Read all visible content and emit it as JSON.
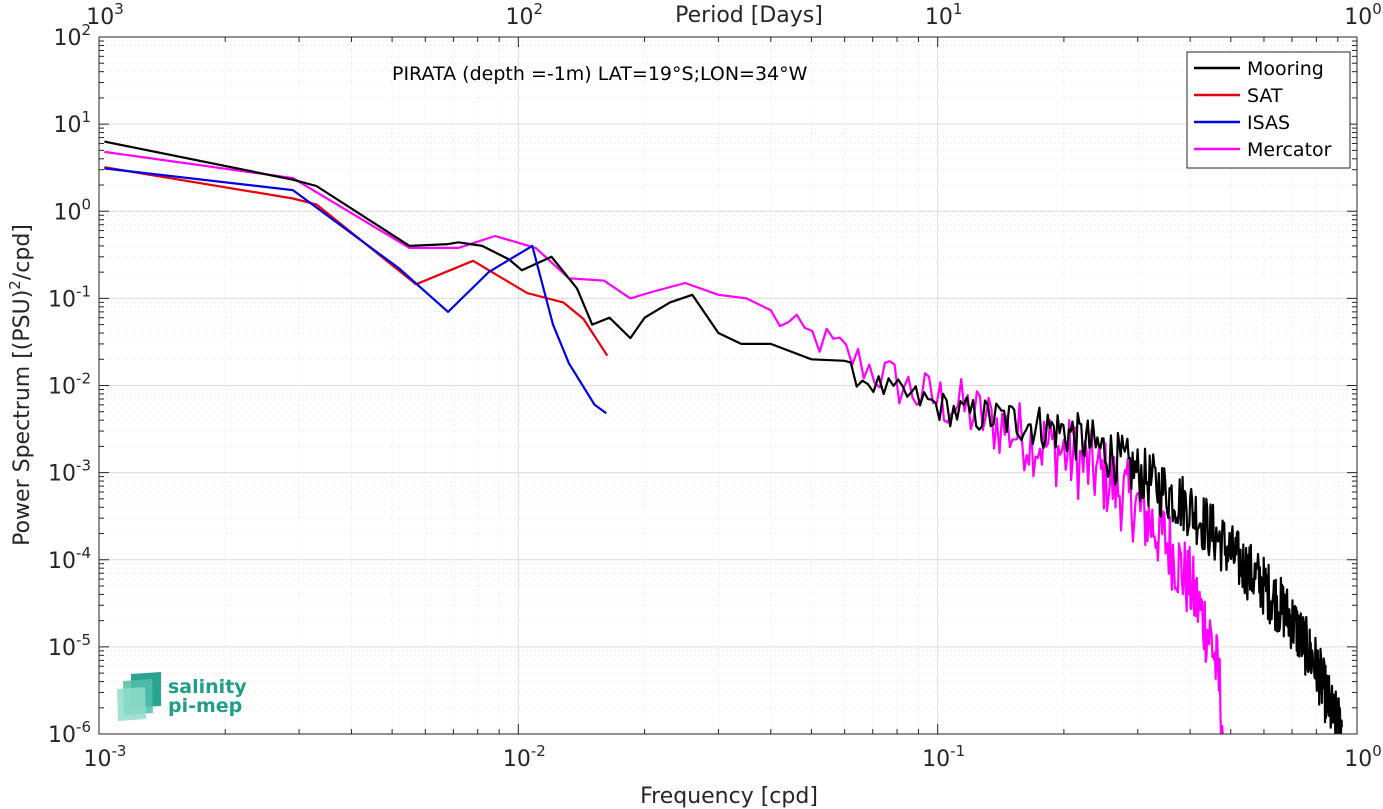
{
  "chart_data": {
    "type": "line",
    "title": "",
    "annotation": "PIRATA (depth =-1m) LAT=19°S;LON=34°W",
    "xlabel": "Frequency [cpd]",
    "ylabel_main": "Power Spectrum [(PSU)",
    "ylabel_sup": "2",
    "ylabel_tail": "/cpd]",
    "top_xlabel": "Period [Days]",
    "xscale": "log",
    "yscale": "log",
    "xlim": [
      0.001,
      1
    ],
    "ylim": [
      1e-06,
      100
    ],
    "grid": true,
    "legend_position": "top-right",
    "x_ticks": [
      {
        "value": 0.001,
        "base": "10",
        "exp": "-3"
      },
      {
        "value": 0.01,
        "base": "10",
        "exp": "-2"
      },
      {
        "value": 0.1,
        "base": "10",
        "exp": "-1"
      },
      {
        "value": 1,
        "base": "10",
        "exp": "0"
      }
    ],
    "y_ticks": [
      {
        "value": 100,
        "base": "10",
        "exp": "2"
      },
      {
        "value": 10,
        "base": "10",
        "exp": "1"
      },
      {
        "value": 1,
        "base": "10",
        "exp": "0"
      },
      {
        "value": 0.1,
        "base": "10",
        "exp": "-1"
      },
      {
        "value": 0.01,
        "base": "10",
        "exp": "-2"
      },
      {
        "value": 0.001,
        "base": "10",
        "exp": "-3"
      },
      {
        "value": 0.0001,
        "base": "10",
        "exp": "-4"
      },
      {
        "value": 1e-05,
        "base": "10",
        "exp": "-5"
      },
      {
        "value": 1e-06,
        "base": "10",
        "exp": "-6"
      }
    ],
    "top_ticks": [
      {
        "period": 1000,
        "base": "10",
        "exp": "3"
      },
      {
        "period": 100,
        "base": "10",
        "exp": "2"
      },
      {
        "period": 10,
        "base": "10",
        "exp": "1"
      },
      {
        "period": 1,
        "base": "10",
        "exp": "0"
      }
    ],
    "series": [
      {
        "name": "Mooring",
        "color": "#000000",
        "style": "noisy",
        "anchors": [
          [
            0.00103,
            6.3
          ],
          [
            0.0029,
            2.3
          ],
          [
            0.0033,
            1.95
          ],
          [
            0.0055,
            0.4
          ],
          [
            0.0068,
            0.42
          ],
          [
            0.0072,
            0.44
          ],
          [
            0.0082,
            0.4
          ],
          [
            0.0095,
            0.28
          ],
          [
            0.0102,
            0.21
          ],
          [
            0.012,
            0.3
          ],
          [
            0.0138,
            0.13
          ],
          [
            0.015,
            0.05
          ],
          [
            0.0165,
            0.06
          ],
          [
            0.0185,
            0.035
          ],
          [
            0.02,
            0.06
          ],
          [
            0.023,
            0.09
          ],
          [
            0.026,
            0.11
          ],
          [
            0.03,
            0.04
          ],
          [
            0.034,
            0.03
          ],
          [
            0.04,
            0.03
          ],
          [
            0.05,
            0.02
          ],
          [
            0.06,
            0.015
          ],
          [
            0.075,
            0.009
          ],
          [
            0.09,
            0.007
          ],
          [
            0.11,
            0.005
          ],
          [
            0.15,
            0.004
          ],
          [
            0.2,
            0.003
          ],
          [
            0.25,
            0.0018
          ],
          [
            0.3,
            0.001
          ],
          [
            0.4,
            0.0004
          ],
          [
            0.5,
            0.00012
          ],
          [
            0.6,
            5e-05
          ],
          [
            0.7,
            2e-05
          ],
          [
            0.8,
            6e-06
          ],
          [
            0.88,
            1.5e-06
          ],
          [
            0.92,
            1.2e-06
          ]
        ],
        "noise_from": 0.06,
        "noise_amp": 0.35
      },
      {
        "name": "SAT",
        "color": "#e8000b",
        "style": "line",
        "anchors": [
          [
            0.00103,
            3.2
          ],
          [
            0.0029,
            1.4
          ],
          [
            0.0033,
            1.2
          ],
          [
            0.0057,
            0.145
          ],
          [
            0.0078,
            0.27
          ],
          [
            0.0105,
            0.115
          ],
          [
            0.0128,
            0.09
          ],
          [
            0.0143,
            0.058
          ],
          [
            0.0163,
            0.022
          ]
        ]
      },
      {
        "name": "ISAS",
        "color": "#0000e6",
        "style": "line",
        "anchors": [
          [
            0.00103,
            3.1
          ],
          [
            0.0029,
            1.75
          ],
          [
            0.0052,
            0.22
          ],
          [
            0.0068,
            0.07
          ],
          [
            0.0085,
            0.2
          ],
          [
            0.0108,
            0.4
          ],
          [
            0.0121,
            0.05
          ],
          [
            0.0132,
            0.018
          ],
          [
            0.0152,
            0.006
          ],
          [
            0.0162,
            0.0048
          ]
        ]
      },
      {
        "name": "Mercator",
        "color": "#ff00ff",
        "style": "noisy",
        "anchors": [
          [
            0.00103,
            4.8
          ],
          [
            0.0029,
            2.4
          ],
          [
            0.0055,
            0.38
          ],
          [
            0.0072,
            0.38
          ],
          [
            0.0088,
            0.52
          ],
          [
            0.011,
            0.38
          ],
          [
            0.0132,
            0.17
          ],
          [
            0.016,
            0.16
          ],
          [
            0.0185,
            0.1
          ],
          [
            0.021,
            0.12
          ],
          [
            0.025,
            0.15
          ],
          [
            0.03,
            0.11
          ],
          [
            0.035,
            0.1
          ],
          [
            0.045,
            0.045
          ],
          [
            0.055,
            0.03
          ],
          [
            0.07,
            0.015
          ],
          [
            0.09,
            0.008
          ],
          [
            0.11,
            0.006
          ],
          [
            0.15,
            0.003
          ],
          [
            0.2,
            0.0017
          ],
          [
            0.25,
            0.0009
          ],
          [
            0.3,
            0.0004
          ],
          [
            0.35,
            0.00017
          ],
          [
            0.4,
            5e-05
          ],
          [
            0.45,
            1.2e-05
          ],
          [
            0.47,
            3.5e-06
          ],
          [
            0.48,
            1e-06
          ]
        ],
        "noise_from": 0.04,
        "noise_amp": 0.45
      }
    ]
  },
  "logo": {
    "line1": "salinity",
    "line2": "pi-mep",
    "color": "#1f9e89"
  }
}
